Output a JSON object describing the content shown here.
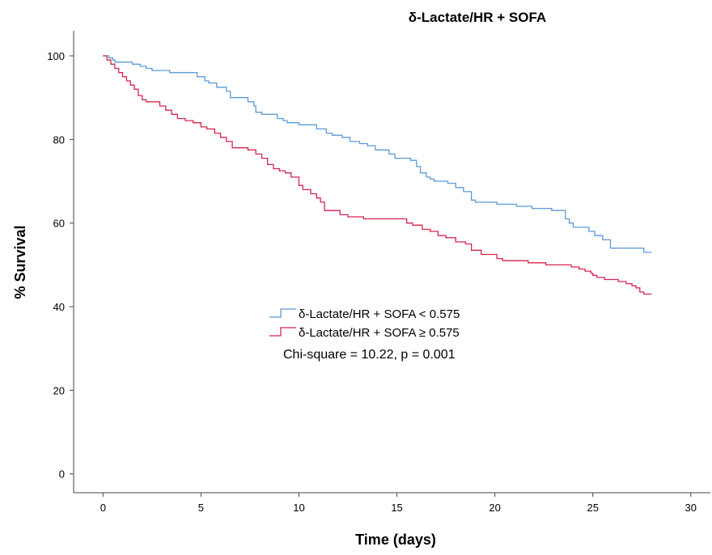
{
  "chart_data": {
    "type": "line",
    "subtype": "kaplan-meier-step",
    "title": "δ-Lactate/HR + SOFA",
    "xlabel": "Time (days)",
    "ylabel": "% Survival",
    "xlim": [
      -1.5,
      31
    ],
    "ylim": [
      -4.5,
      106
    ],
    "xticks": [
      0,
      5,
      10,
      15,
      20,
      25,
      30
    ],
    "yticks": [
      0,
      20,
      40,
      60,
      80,
      100
    ],
    "xtick_labels": [
      "0",
      "5",
      "10",
      "15",
      "20",
      "25",
      "30"
    ],
    "ytick_labels": [
      "0",
      "20",
      "40",
      "60",
      "80",
      "100"
    ],
    "grid": false,
    "legend_position": "center",
    "annotation": "Chi-square = 10.22, p = 0.001",
    "series": [
      {
        "name": "δ-Lactate/HR + SOFA < 0.575",
        "color": "#5b9bd5",
        "x": [
          0,
          0.3,
          0.5,
          0.6,
          1.5,
          1.9,
          2.2,
          2.5,
          3.4,
          4.8,
          5.2,
          5.4,
          5.8,
          6.3,
          6.5,
          7.4,
          7.7,
          7.8,
          8.1,
          8.9,
          9.2,
          9.4,
          10.0,
          10.9,
          11.4,
          11.7,
          12.2,
          12.6,
          13.1,
          13.5,
          13.9,
          14.6,
          14.9,
          15.7,
          16.0,
          16.2,
          16.5,
          16.7,
          16.9,
          17.6,
          18.0,
          18.4,
          18.8,
          19.0,
          20.1,
          21.1,
          21.9,
          22.9,
          23.6,
          23.8,
          24.0,
          24.8,
          25.1,
          25.5,
          25.9,
          26.2,
          26.6,
          27.6,
          28.0
        ],
        "y": [
          100,
          99.5,
          99,
          98.5,
          98,
          97.5,
          97,
          96.5,
          96,
          95,
          94,
          93.5,
          92.5,
          91.5,
          90,
          89,
          88,
          86.5,
          86,
          85,
          84.5,
          84,
          83.5,
          82.5,
          81.5,
          81,
          80.5,
          79.5,
          79,
          78.5,
          77.5,
          76.5,
          75.5,
          75,
          73.5,
          72,
          71,
          70.5,
          70,
          69.5,
          68.5,
          67.5,
          65.5,
          65,
          64.5,
          64,
          63.5,
          63,
          61,
          60,
          59,
          58,
          57,
          56,
          54,
          54,
          54,
          53,
          53
        ]
      },
      {
        "name": "δ-Lactate/HR + SOFA ≥ 0.575",
        "color": "#d6254e",
        "x": [
          0,
          0.2,
          0.4,
          0.6,
          0.8,
          1.0,
          1.2,
          1.4,
          1.6,
          1.8,
          2.0,
          2.2,
          2.9,
          3.2,
          3.5,
          3.8,
          4.2,
          4.6,
          5.0,
          5.3,
          5.7,
          6.0,
          6.3,
          6.6,
          7.4,
          7.8,
          8.1,
          8.4,
          8.7,
          9.0,
          9.3,
          9.6,
          10.0,
          10.2,
          10.6,
          10.9,
          11.1,
          11.3,
          12.1,
          12.5,
          13.3,
          14.0,
          14.8,
          15.5,
          15.8,
          16.3,
          16.7,
          17.1,
          17.5,
          18.0,
          18.5,
          18.8,
          19.3,
          20.1,
          20.4,
          21.7,
          22.6,
          23.9,
          24.3,
          24.6,
          24.9,
          25.0,
          25.2,
          25.6,
          26.3,
          26.7,
          27.0,
          27.2,
          27.4,
          27.6,
          28.0
        ],
        "y": [
          100,
          99,
          98,
          97,
          96,
          95,
          94,
          93,
          92,
          90.5,
          89.5,
          89,
          88,
          87,
          86,
          85,
          84.5,
          84,
          83,
          82.5,
          81.5,
          80.5,
          79.5,
          78,
          77.5,
          76.5,
          75.5,
          74,
          73,
          72.5,
          72,
          71,
          69,
          68,
          67,
          66,
          65,
          63,
          62,
          61.5,
          61,
          61,
          61,
          60,
          59.5,
          58.5,
          58,
          57,
          56.5,
          55.5,
          55,
          53.5,
          52.5,
          51.5,
          51,
          50.5,
          50,
          49.5,
          49,
          48.5,
          48,
          47.5,
          47,
          46.5,
          46,
          45.5,
          45,
          44.5,
          43.5,
          43,
          43
        ]
      }
    ]
  }
}
